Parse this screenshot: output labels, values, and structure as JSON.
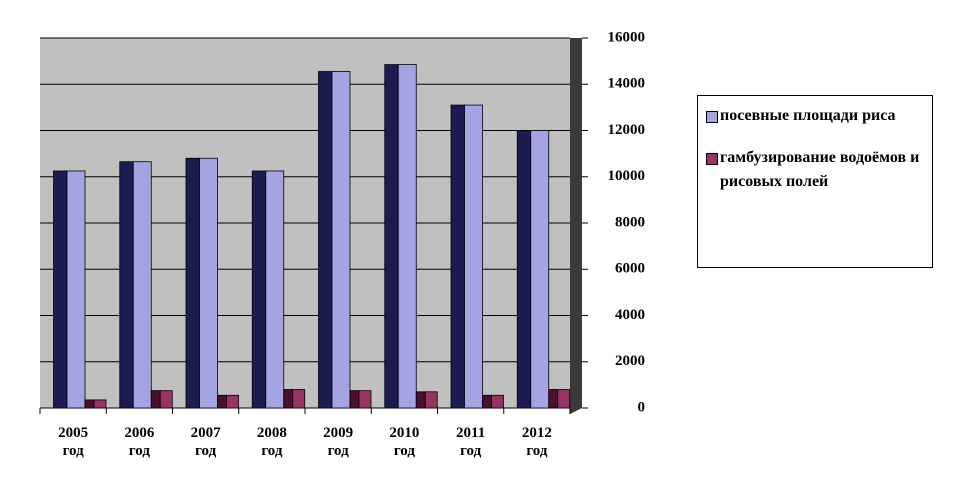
{
  "chart_data": {
    "type": "bar",
    "categories": [
      "2005 год",
      "2006 год",
      "2007 год",
      "2008 год",
      "2009 год",
      "2010 год",
      "2011 год",
      "2012 год"
    ],
    "series": [
      {
        "name": "посевные площади риса",
        "color": "#a4a4e2",
        "values": [
          10250,
          10650,
          10800,
          10250,
          14550,
          14850,
          13100,
          12000
        ]
      },
      {
        "name": "гамбузирование водоёмов и рисовых полей",
        "color": "#993366",
        "values": [
          350,
          750,
          550,
          800,
          750,
          700,
          550,
          800
        ]
      }
    ],
    "ylim": [
      0,
      16000
    ],
    "yticks": [
      0,
      2000,
      4000,
      6000,
      8000,
      10000,
      12000,
      14000,
      16000
    ],
    "grid": true,
    "legend": "right"
  }
}
